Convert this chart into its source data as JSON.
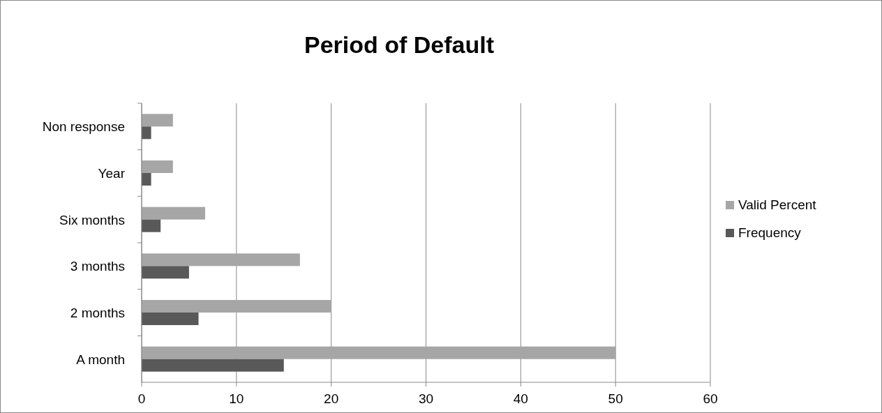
{
  "chart_data": {
    "type": "bar",
    "orientation": "horizontal",
    "title": "Period of Default",
    "categories": [
      "Non response",
      "Year",
      "Six months",
      "3 months",
      "2 months",
      "A month"
    ],
    "series": [
      {
        "name": "Valid Percent",
        "color": "#a6a6a6",
        "values": [
          3.3,
          3.3,
          6.7,
          16.7,
          20,
          50
        ]
      },
      {
        "name": "Frequency",
        "color": "#595959",
        "values": [
          1,
          1,
          2,
          5,
          6,
          15
        ]
      }
    ],
    "xlim": [
      0,
      60
    ],
    "xticks": [
      0,
      10,
      20,
      30,
      40,
      50,
      60
    ],
    "grid": "x",
    "legend": "right"
  }
}
